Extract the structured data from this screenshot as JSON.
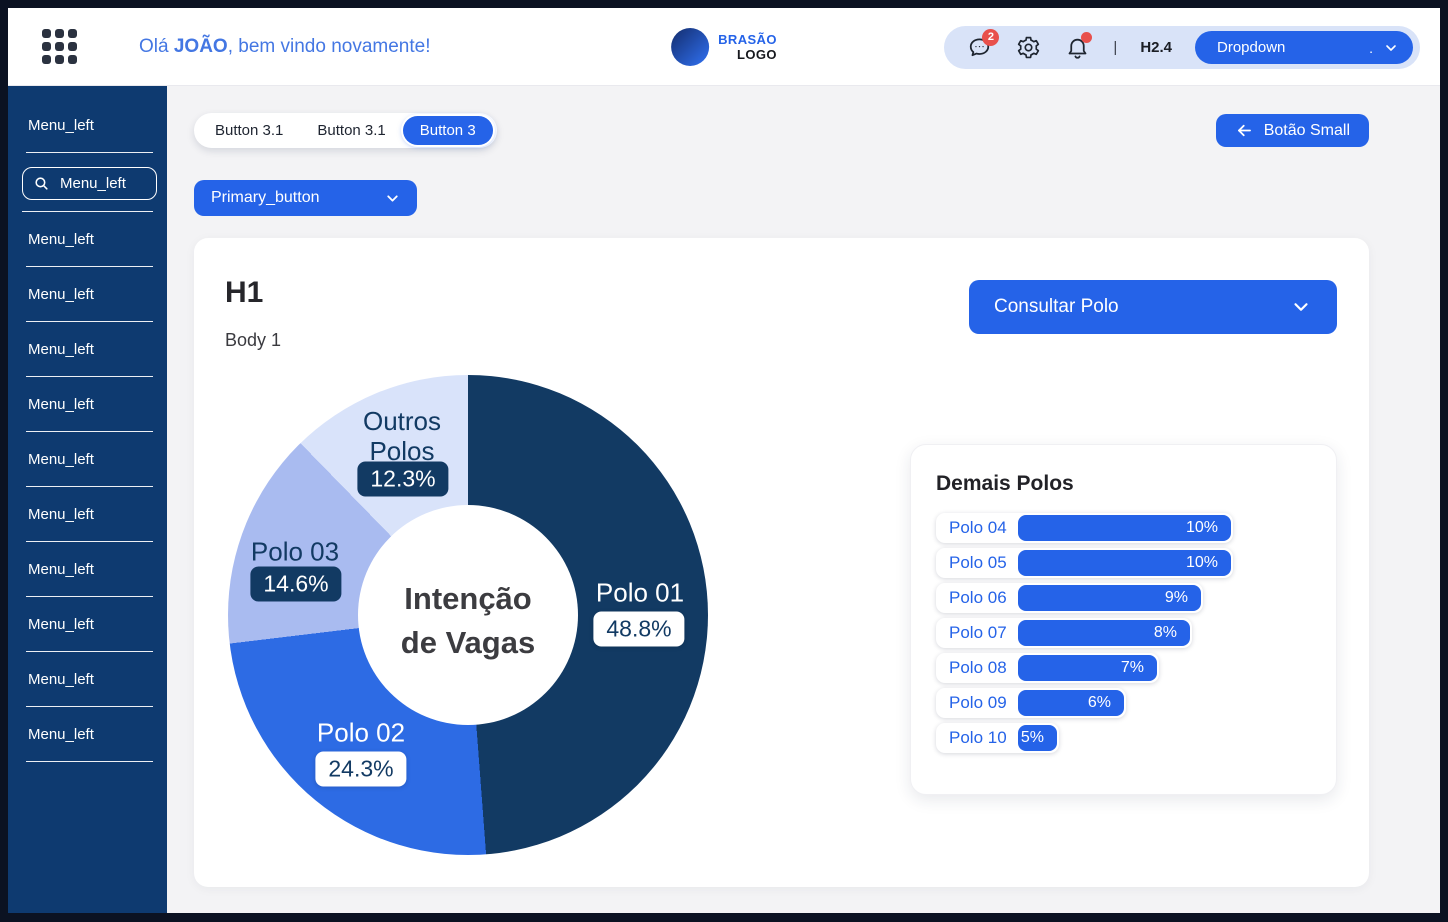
{
  "header": {
    "greeting_prefix": "Olá ",
    "greeting_name": "JOÃO",
    "greeting_suffix": ", bem vindo novamente!",
    "logo_line1": "BRASÃO",
    "logo_line2": "LOGO",
    "chat_badge": "2",
    "divider": "|",
    "version": "H2.4",
    "dropdown_label": "Dropdown",
    "dropdown_dot": ".",
    "accent_color": "#2563E8",
    "alert_color": "#E8504C"
  },
  "sidebar": {
    "background_color": "#0E3A70",
    "items": [
      {
        "label": "Menu_left"
      },
      {
        "label": "Menu_left",
        "has_search_icon": true
      },
      {
        "label": "Menu_left"
      },
      {
        "label": "Menu_left"
      },
      {
        "label": "Menu_left"
      },
      {
        "label": "Menu_left"
      },
      {
        "label": "Menu_left"
      },
      {
        "label": "Menu_left"
      },
      {
        "label": "Menu_left"
      },
      {
        "label": "Menu_left"
      },
      {
        "label": "Menu_left"
      },
      {
        "label": "Menu_left"
      }
    ]
  },
  "toolbar": {
    "tabs": [
      {
        "label": "Button 3.1",
        "active": false
      },
      {
        "label": "Button 3.1",
        "active": false
      },
      {
        "label": "Button 3",
        "active": true
      }
    ],
    "back_button_label": "Botão Small",
    "primary_button_label": "Primary_button"
  },
  "card": {
    "title": "H1",
    "subtitle": "Body 1",
    "consult_button_label": "Consultar Polo"
  },
  "chart_data": [
    {
      "type": "pie",
      "variant": "donut",
      "title": "Intenção de Vagas",
      "center_lines": [
        "Intenção",
        "de Vagas"
      ],
      "start_angle_deg": 0,
      "direction": "clockwise",
      "slices": [
        {
          "label": "Polo 01",
          "value": 48.8,
          "display": "48.8%",
          "color": "#123A63"
        },
        {
          "label": "Polo 02",
          "value": 24.3,
          "display": "24.3%",
          "color": "#2D6BE4"
        },
        {
          "label": "Polo 03",
          "value": 14.6,
          "display": "14.6%",
          "color": "#A9BBF0"
        },
        {
          "label": "Outros Polos",
          "value": 12.3,
          "display": "12.3%",
          "color": "#D9E3FA"
        }
      ]
    },
    {
      "type": "bar",
      "orientation": "horizontal",
      "title": "Demais Polos",
      "categories": [
        "Polo 04",
        "Polo 05",
        "Polo 06",
        "Polo 07",
        "Polo 08",
        "Polo 09",
        "Polo 10"
      ],
      "values": [
        10,
        10,
        9,
        8,
        7,
        6,
        5
      ],
      "labels": [
        "10%",
        "10%",
        "9%",
        "8%",
        "7%",
        "6%",
        "5%"
      ],
      "bar_color": "#2563E8",
      "value_range": [
        0,
        10
      ]
    }
  ]
}
